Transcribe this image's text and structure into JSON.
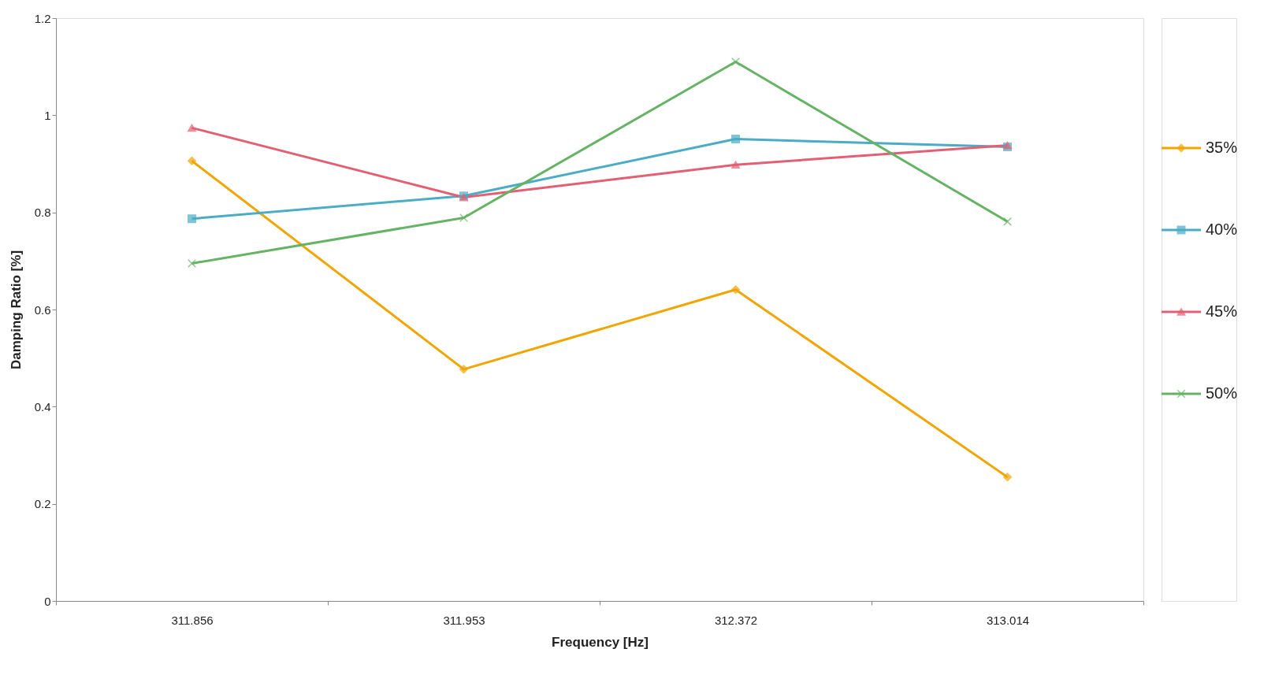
{
  "chart_data": {
    "type": "line",
    "xlabel": "Frequency [Hz]",
    "ylabel": "Damping Ratio [%]",
    "categories": [
      "311.856",
      "311.953",
      "312.372",
      "313.014"
    ],
    "series": [
      {
        "name": "35%",
        "color": "#f0a500",
        "marker": "diamond",
        "values": [
          0.906,
          0.477,
          0.641,
          0.255
        ]
      },
      {
        "name": "40%",
        "color": "#4bacc6",
        "marker": "square",
        "values": [
          0.787,
          0.834,
          0.951,
          0.935
        ]
      },
      {
        "name": "45%",
        "color": "#e36074",
        "marker": "triangle",
        "values": [
          0.974,
          0.831,
          0.898,
          0.938
        ]
      },
      {
        "name": "50%",
        "color": "#66b366",
        "marker": "cross",
        "values": [
          0.695,
          0.789,
          1.11,
          0.781
        ]
      }
    ],
    "ylim": [
      0,
      1.2
    ],
    "yticks": [
      0,
      0.2,
      0.4,
      0.6,
      0.8,
      1,
      1.2
    ],
    "grid": false,
    "legend": "right"
  }
}
